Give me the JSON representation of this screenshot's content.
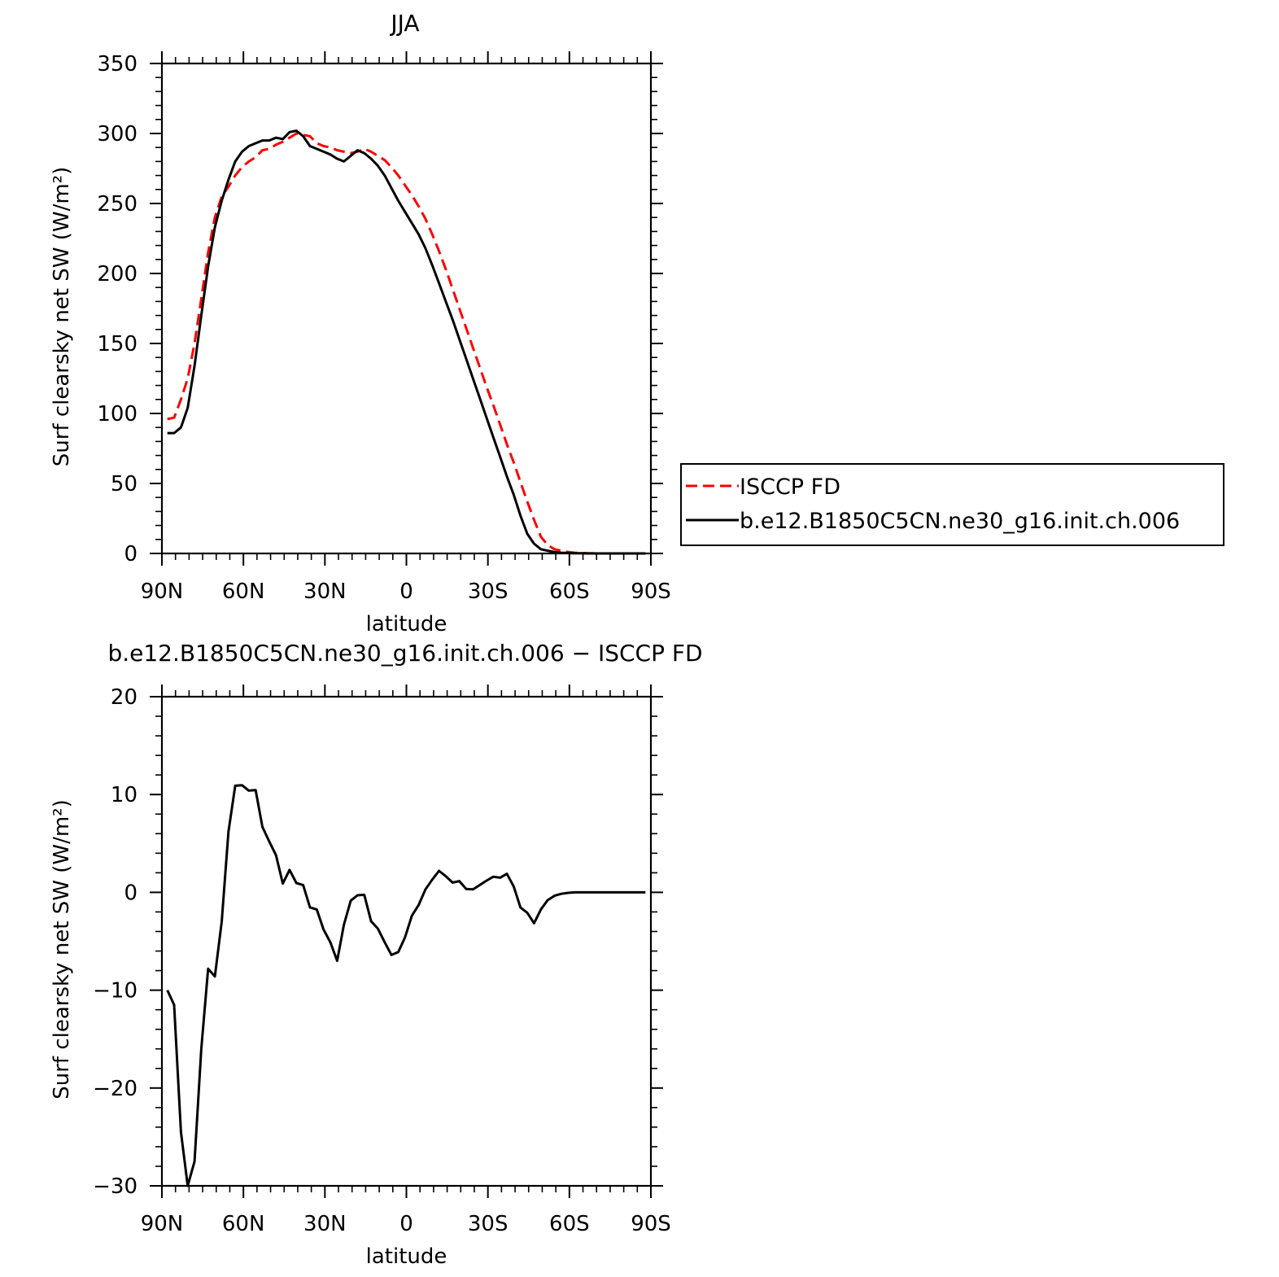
{
  "chart_data": [
    {
      "type": "line",
      "title": "JJA",
      "xlabel": "latitude",
      "ylabel": "Surf clearsky net SW (W/m²)",
      "x_tick_labels": [
        "90N",
        "60N",
        "30N",
        "0",
        "30S",
        "60S",
        "90S"
      ],
      "x_ticks": [
        90,
        60,
        30,
        0,
        -30,
        -60,
        -90
      ],
      "xlim": [
        90,
        -90
      ],
      "ylim": [
        0,
        350
      ],
      "y_ticks": [
        0,
        50,
        100,
        150,
        200,
        250,
        300,
        350
      ],
      "legend": {
        "placement": "right",
        "entries": [
          "ISCCP FD",
          "b.e12.B1850C5CN.ne30_g16.init.ch.006"
        ]
      },
      "x": [
        88,
        85.5,
        83,
        80.5,
        78,
        75.5,
        73,
        70.5,
        68,
        65.5,
        63,
        60.5,
        58,
        55.5,
        53,
        50.5,
        48,
        45.5,
        43,
        40.5,
        38,
        35.5,
        33,
        30.5,
        28,
        25.5,
        23,
        20.5,
        18,
        15.5,
        13,
        10.5,
        8,
        5.5,
        3,
        0.5,
        -2,
        -4.5,
        -7,
        -9.5,
        -12,
        -14.5,
        -17,
        -19.5,
        -22,
        -24.5,
        -27,
        -29.5,
        -32,
        -34.5,
        -37,
        -39.5,
        -42,
        -44.5,
        -47,
        -49.5,
        -52,
        -54.5,
        -57,
        -59.5,
        -62,
        -64.5,
        -67,
        -69.5,
        -72,
        -74.5,
        -77,
        -79.5,
        -82,
        -84.5,
        -87,
        -88
      ],
      "series": [
        {
          "name": "ISCCP FD",
          "color": "#ff0000",
          "dash": "dashed",
          "values": [
            96,
            97,
            110,
            125,
            150,
            182,
            215,
            240,
            255,
            262,
            270,
            276,
            280,
            283,
            288,
            289,
            292,
            294,
            297,
            300,
            299,
            298,
            293,
            291,
            290,
            288,
            287,
            286,
            287,
            289,
            287,
            284,
            281,
            276,
            270,
            263,
            256,
            248,
            239,
            228,
            216,
            203,
            189,
            175,
            161,
            147,
            133,
            119,
            106,
            92,
            78,
            65,
            51,
            37,
            24,
            12,
            6,
            3,
            2,
            1,
            0.5,
            0.3,
            0.2,
            0.1,
            0,
            0,
            0,
            0,
            0,
            0,
            0,
            0
          ]
        },
        {
          "name": "b.e12.B1850C5CN.ne30_g16.init.ch.006",
          "color": "#000000",
          "dash": "solid",
          "values": [
            86,
            86,
            90,
            104,
            134,
            170,
            205,
            233,
            252,
            267,
            280,
            287,
            291,
            293,
            295,
            295,
            297,
            296,
            301,
            302,
            298,
            291,
            289,
            287,
            285,
            282,
            280,
            284,
            288,
            286,
            282,
            277,
            270,
            261,
            252,
            244,
            236,
            228,
            218,
            206,
            193,
            180,
            167,
            153,
            139,
            125,
            111,
            97,
            83,
            69,
            55,
            42,
            27,
            14,
            7,
            3,
            2,
            1,
            0.5,
            0.3,
            0.2,
            0.1,
            0,
            0,
            0,
            0,
            0,
            0,
            0,
            0,
            0,
            0
          ]
        }
      ]
    },
    {
      "type": "line",
      "title": "b.e12.B1850C5CN.ne30_g16.init.ch.006 − ISCCP FD",
      "xlabel": "latitude",
      "ylabel": "Surf clearsky net SW (W/m²)",
      "x_tick_labels": [
        "90N",
        "60N",
        "30N",
        "0",
        "30S",
        "60S",
        "90S"
      ],
      "x_ticks": [
        90,
        60,
        30,
        0,
        -30,
        -60,
        -90
      ],
      "xlim": [
        90,
        -90
      ],
      "ylim": [
        -30,
        20
      ],
      "y_ticks": [
        -30,
        -20,
        -10,
        0,
        10,
        20
      ],
      "x": [
        88,
        85.5,
        83,
        80.5,
        78,
        75.5,
        73,
        70.5,
        68,
        65.5,
        63,
        60.5,
        58,
        55.5,
        53,
        50.5,
        48,
        45.5,
        43,
        40.5,
        38,
        35.5,
        33,
        30.5,
        28,
        25.5,
        23,
        20.5,
        18,
        15.5,
        13,
        10.5,
        8,
        5.5,
        3,
        0.5,
        -2,
        -4.5,
        -7,
        -9.5,
        -12,
        -14.5,
        -17,
        -19.5,
        -22,
        -24.5,
        -27,
        -29.5,
        -32,
        -34.5,
        -37,
        -39.5,
        -42,
        -44.5,
        -47,
        -49.5,
        -52,
        -54.5,
        -57,
        -59.5,
        -62,
        -64.5,
        -67,
        -69.5,
        -72,
        -74.5,
        -77,
        -79.5,
        -82,
        -84.5,
        -87,
        -88
      ],
      "series": [
        {
          "name": "",
          "color": "#000000",
          "dash": "solid",
          "values": [
            -10,
            -11.5,
            -24.5,
            -30,
            -27.5,
            -16,
            -7.8,
            -8.6,
            -3,
            6.2,
            10.9,
            10.95,
            10.4,
            10.45,
            6.7,
            5.2,
            3.8,
            0.9,
            2.3,
            0.95,
            0.75,
            -1.55,
            -1.75,
            -3.8,
            -5.1,
            -7,
            -3.3,
            -0.85,
            -0.3,
            -0.25,
            -2.95,
            -3.7,
            -5.1,
            -6.4,
            -6.1,
            -4.6,
            -2.4,
            -1.3,
            0.3,
            1.3,
            2.2,
            1.65,
            1,
            1.15,
            0.35,
            0.3,
            0.75,
            1.2,
            1.6,
            1.5,
            1.9,
            0.6,
            -1.55,
            -2.1,
            -3.15,
            -1.75,
            -0.8,
            -0.35,
            -0.15,
            -0.05,
            0,
            0,
            0,
            0,
            0,
            0,
            0,
            0,
            0,
            0,
            0,
            0
          ]
        }
      ]
    }
  ]
}
